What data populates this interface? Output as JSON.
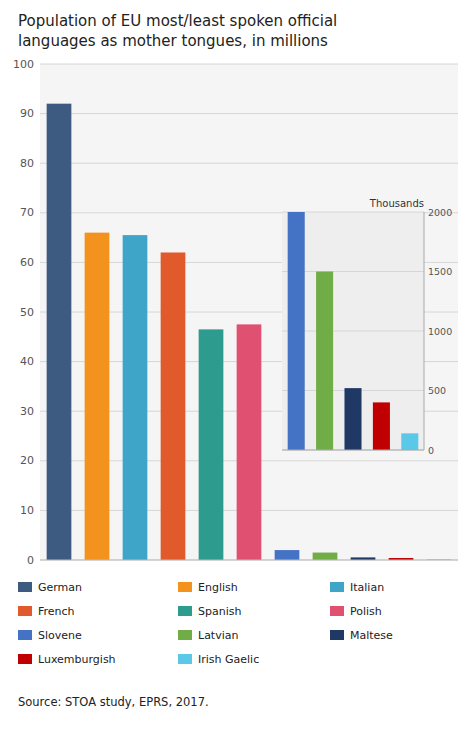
{
  "chart_data": [
    {
      "type": "bar",
      "title": "Population of EU most/least spoken official\nlanguages as mother tongues, in millions",
      "categories": [
        "German",
        "English",
        "Italian",
        "French",
        "Spanish",
        "Polish",
        "Slovene",
        "Latvian",
        "Maltese",
        "Luxemburgish",
        "Irish Gaelic"
      ],
      "values": [
        92,
        66,
        65.5,
        62,
        46.5,
        47.5,
        2.0,
        1.5,
        0.52,
        0.4,
        0.14
      ],
      "colors": [
        "#3d5a80",
        "#f4921e",
        "#3ea4c8",
        "#e05a2b",
        "#2d9c8e",
        "#e05070",
        "#4472c4",
        "#70ad47",
        "#1f3864",
        "#c00000",
        "#5bc8e8"
      ],
      "ylim": [
        0,
        100
      ],
      "yticks": [
        0,
        10,
        20,
        30,
        40,
        50,
        60,
        70,
        80,
        90,
        100
      ],
      "grid": true,
      "tick_labels": "y",
      "legend": "bottom",
      "annotations": [
        "Source: STOA study, EPRS, 2017."
      ]
    },
    {
      "type": "bar",
      "ylabel": "Thousands",
      "categories": [
        "Slovene",
        "Latvian",
        "Maltese",
        "Luxemburgish",
        "Irish Gaelic"
      ],
      "values": [
        2000,
        1500,
        520,
        400,
        140
      ],
      "colors": [
        "#4472c4",
        "#70ad47",
        "#1f3864",
        "#c00000",
        "#5bc8e8"
      ],
      "ylim": [
        0,
        2000
      ],
      "yticks": [
        0,
        500,
        1000,
        1500,
        2000
      ],
      "grid": true,
      "tick_labels": "y"
    }
  ]
}
